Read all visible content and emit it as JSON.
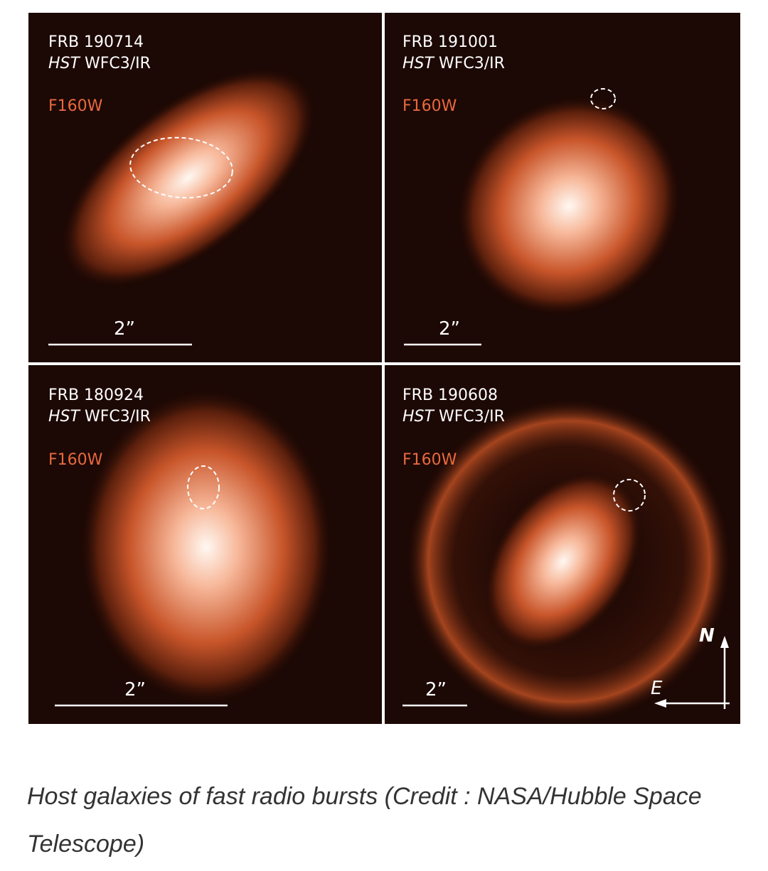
{
  "panels": [
    {
      "name": "FRB 190714",
      "telescope": "HST",
      "camera": "WFC3/IR",
      "filter": "F160W",
      "scale": "2”"
    },
    {
      "name": "FRB 191001",
      "telescope": "HST",
      "camera": "WFC3/IR",
      "filter": "F160W",
      "scale": "2”"
    },
    {
      "name": "FRB 180924",
      "telescope": "HST",
      "camera": "WFC3/IR",
      "filter": "F160W",
      "scale": "2”"
    },
    {
      "name": "FRB 190608",
      "telescope": "HST",
      "camera": "WFC3/IR",
      "filter": "F160W",
      "scale": "2”"
    }
  ],
  "compass": {
    "north": "N",
    "east": "E"
  },
  "caption": "Host galaxies of fast radio bursts (Credit : NASA/Hubble Space Telescope)"
}
